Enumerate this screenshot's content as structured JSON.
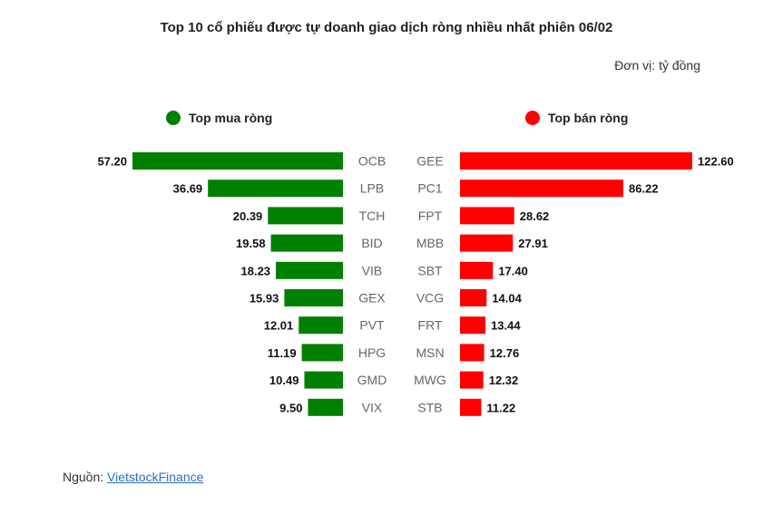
{
  "title": "Top 10 cổ phiếu được tự doanh giao dịch ròng nhiều nhất phiên 06/02",
  "unit": "Đơn vị: tỷ đồng",
  "source": {
    "label": "Nguồn: ",
    "link_text": "VietstockFinance"
  },
  "colors": {
    "buy": "#008000",
    "sell": "#ff0000"
  },
  "chart_data": [
    {
      "type": "bar",
      "orientation": "horizontal",
      "direction": "right-to-left",
      "legend": "Top mua ròng",
      "color": "#008000",
      "categories": [
        "OCB",
        "LPB",
        "TCH",
        "BID",
        "VIB",
        "GEX",
        "PVT",
        "HPG",
        "GMD",
        "VIX"
      ],
      "values": [
        57.2,
        36.69,
        20.39,
        19.58,
        18.23,
        15.93,
        12.01,
        11.19,
        10.49,
        9.5
      ],
      "value_labels": [
        "57.20",
        "36.69",
        "20.39",
        "19.58",
        "18.23",
        "15.93",
        "12.01",
        "11.19",
        "10.49",
        "9.50"
      ],
      "xlim": [
        0,
        57.2
      ]
    },
    {
      "type": "bar",
      "orientation": "horizontal",
      "direction": "left-to-right",
      "legend": "Top bán ròng",
      "color": "#ff0000",
      "categories": [
        "GEE",
        "PC1",
        "FPT",
        "MBB",
        "SBT",
        "VCG",
        "FRT",
        "MSN",
        "MWG",
        "STB"
      ],
      "values": [
        122.6,
        86.22,
        28.62,
        27.91,
        17.4,
        14.04,
        13.44,
        12.76,
        12.32,
        11.22
      ],
      "value_labels": [
        "122.60",
        "86.22",
        "28.62",
        "27.91",
        "17.40",
        "14.04",
        "13.44",
        "12.76",
        "12.32",
        "11.22"
      ],
      "xlim": [
        0,
        122.6
      ]
    }
  ]
}
